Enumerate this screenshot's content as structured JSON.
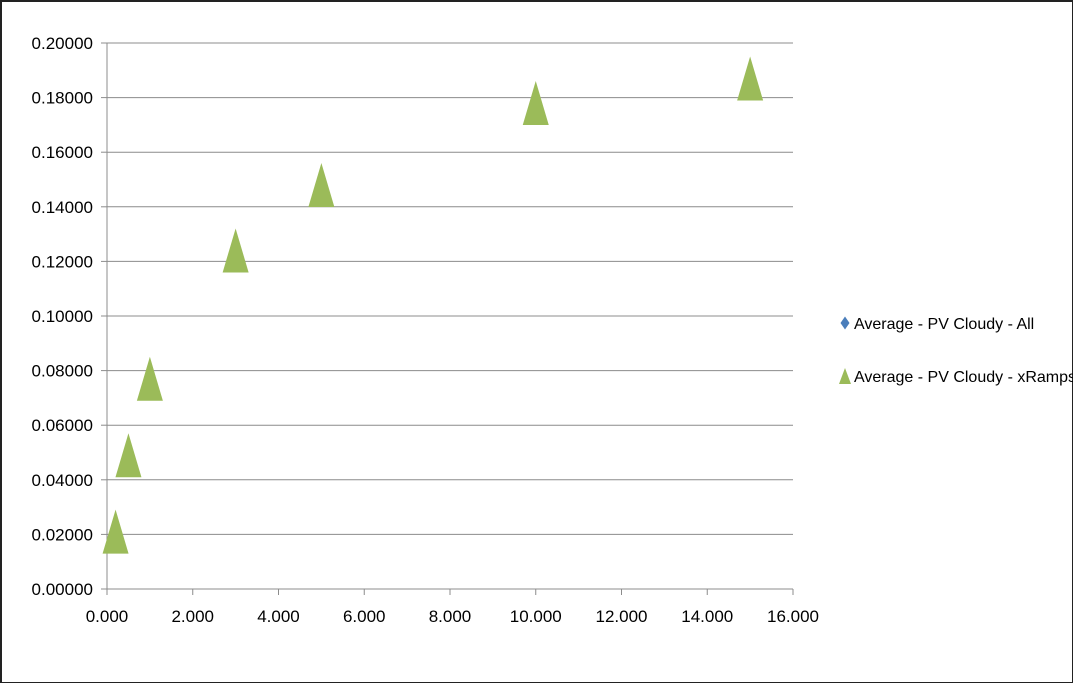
{
  "chart_data": {
    "type": "scatter",
    "title": "",
    "xlabel": "",
    "ylabel": "",
    "xlim": [
      0,
      16
    ],
    "ylim": [
      0,
      0.2
    ],
    "x_ticks": [
      "0.000",
      "2.000",
      "4.000",
      "6.000",
      "8.000",
      "10.000",
      "12.000",
      "14.000",
      "16.000"
    ],
    "y_ticks": [
      "0.00000",
      "0.02000",
      "0.04000",
      "0.06000",
      "0.08000",
      "0.10000",
      "0.12000",
      "0.14000",
      "0.16000",
      "0.18000",
      "0.20000"
    ],
    "grid": "horizontal",
    "legend_position": "right",
    "series": [
      {
        "name": "Average - PV Cloudy - All",
        "marker": "diamond",
        "color": "#4a7ebb",
        "points": []
      },
      {
        "name": "Average - PV Cloudy - xRamps",
        "marker": "triangle",
        "color": "#9bbb59",
        "points": [
          {
            "x": 0.2,
            "y": 0.021
          },
          {
            "x": 0.5,
            "y": 0.049
          },
          {
            "x": 1.0,
            "y": 0.077
          },
          {
            "x": 3.0,
            "y": 0.124
          },
          {
            "x": 5.0,
            "y": 0.148
          },
          {
            "x": 10.0,
            "y": 0.178
          },
          {
            "x": 15.0,
            "y": 0.187
          }
        ]
      }
    ]
  }
}
